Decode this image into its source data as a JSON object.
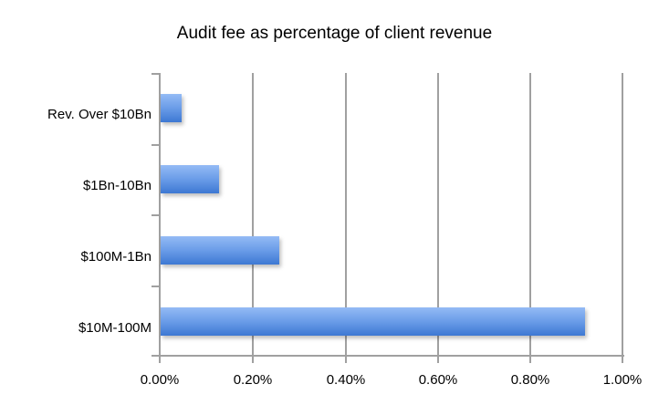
{
  "chart_data": {
    "type": "bar",
    "orientation": "horizontal",
    "title": "Audit fee as percentage of client revenue",
    "xlabel": "",
    "ylabel": "",
    "categories": [
      "Rev. Over $10Bn",
      "$1Bn-10Bn",
      "$100M-1Bn",
      "$10M-100M"
    ],
    "values": [
      0.05,
      0.13,
      0.26,
      0.92
    ],
    "value_unit": "%",
    "xlim": [
      0,
      1.0
    ],
    "x_ticks": [
      "0.00%",
      "0.20%",
      "0.40%",
      "0.60%",
      "0.80%",
      "1.00%"
    ],
    "grid": "vertical",
    "legend": "none",
    "bar_color": "#5a8fe0"
  },
  "title": "Audit fee as percentage of client revenue",
  "y_labels": [
    "Rev. Over $10Bn",
    "$1Bn-10Bn",
    "$100M-1Bn",
    "$10M-100M"
  ],
  "x_ticks": [
    "0.00%",
    "0.20%",
    "0.40%",
    "0.60%",
    "0.80%",
    "1.00%"
  ]
}
